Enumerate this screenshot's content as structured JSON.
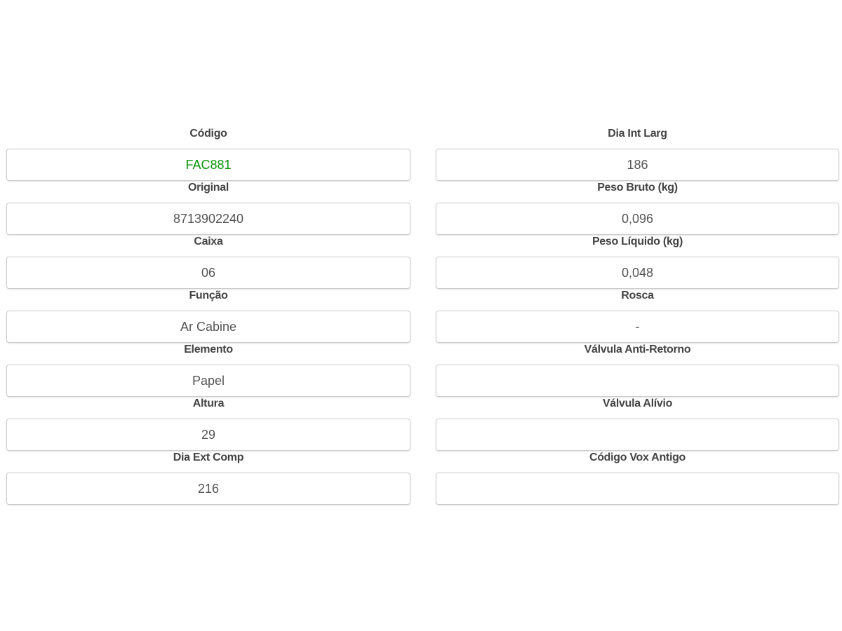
{
  "left_fields": [
    {
      "label": "Código",
      "value": "FAC881",
      "highlight": "#0a960a"
    },
    {
      "label": "Original",
      "value": "8713902240"
    },
    {
      "label": "Caixa",
      "value": "06"
    },
    {
      "label": "Função",
      "value": "Ar Cabine"
    },
    {
      "label": "Elemento",
      "value": "Papel"
    },
    {
      "label": "Altura",
      "value": "29"
    },
    {
      "label": "Dia Ext Comp",
      "value": "216"
    }
  ],
  "right_fields": [
    {
      "label": "Dia Int Larg",
      "value": "186"
    },
    {
      "label": "Peso Bruto (kg)",
      "value": "0,096"
    },
    {
      "label": "Peso Líquido (kg)",
      "value": "0,048"
    },
    {
      "label": "Rosca",
      "value": "-"
    },
    {
      "label": "Válvula Anti-Retorno",
      "value": ""
    },
    {
      "label": "Válvula Alívio",
      "value": ""
    },
    {
      "label": "Código Vox Antigo",
      "value": ""
    }
  ]
}
